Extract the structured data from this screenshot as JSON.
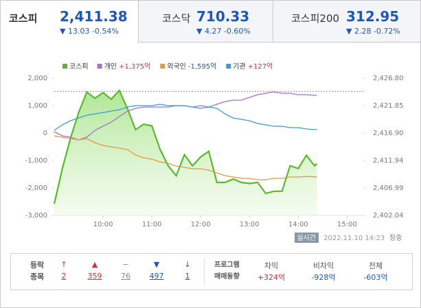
{
  "tabs": [
    {
      "name": "코스피",
      "value": "2,411.38",
      "change": "▼ 13.03 -0.54%"
    },
    {
      "name": "코스닥",
      "value": "710.33",
      "change": "▼ 4.27 -0.60%"
    },
    {
      "name": "코스피200",
      "value": "312.95",
      "change": "▼ 2.28 -0.72%"
    }
  ],
  "chart_data": {
    "type": "line",
    "x": [
      540,
      550,
      560,
      570,
      580,
      590,
      600,
      610,
      620,
      630,
      640,
      650,
      660,
      670,
      680,
      690,
      700,
      710,
      720,
      730,
      740,
      750,
      760,
      770,
      780,
      790,
      800,
      810,
      820,
      830,
      840,
      850,
      860,
      863
    ],
    "xlim": [
      540,
      920
    ],
    "xticks": [
      {
        "value": 600,
        "label": "10:00"
      },
      {
        "value": 660,
        "label": "11:00"
      },
      {
        "value": 720,
        "label": "12:00"
      },
      {
        "value": 780,
        "label": "13:00"
      },
      {
        "value": 840,
        "label": "14:00"
      },
      {
        "value": 900,
        "label": "15:00"
      }
    ],
    "ylim": [
      -3000,
      2000
    ],
    "yticks": [
      {
        "value": 2000,
        "label": "2,000"
      },
      {
        "value": 1000,
        "label": "1,000"
      },
      0,
      {
        "value": -1000,
        "label": "-1,000"
      },
      {
        "value": -2000,
        "label": "-2,000"
      },
      {
        "value": -3000,
        "label": "-3,000"
      }
    ],
    "y2lim": [
      2402.04,
      2426.8
    ],
    "y2ticks": [
      {
        "value": 2426.8,
        "label": "2,426.80"
      },
      {
        "value": 2421.85,
        "label": "2,421.85"
      },
      {
        "value": 2416.9,
        "label": "2,416.90"
      },
      {
        "value": 2411.94,
        "label": "2,411.94"
      },
      {
        "value": 2406.99,
        "label": "2,406.99"
      },
      {
        "value": 2402.04,
        "label": "2,402.04"
      }
    ],
    "reference_line": 2424.41,
    "grid": false,
    "series": [
      {
        "name": "코스피",
        "color": "#58b92b",
        "axis": "y2",
        "fill": true,
        "values": [
          2404.15,
          2410.5,
          2416.0,
          2420.6,
          2424.3,
          2423.2,
          2424.2,
          2423.0,
          2424.6,
          2421.3,
          2417.5,
          2418.5,
          2418.2,
          2414.0,
          2411.0,
          2409.2,
          2413.0,
          2411.0,
          2412.6,
          2413.6,
          2408.0,
          2408.0,
          2408.6,
          2408.0,
          2407.8,
          2408.0,
          2406.0,
          2406.4,
          2406.4,
          2411.0,
          2410.5,
          2412.9,
          2411.0,
          2411.38
        ]
      },
      {
        "name": "개인",
        "color": "#a56fd2",
        "total_label": "+1,375억",
        "label_color": "#d3302f",
        "values": [
          50,
          -100,
          -150,
          -250,
          -150,
          100,
          250,
          400,
          600,
          800,
          900,
          950,
          950,
          950,
          950,
          1000,
          1000,
          950,
          1000,
          950,
          1050,
          1150,
          1200,
          1200,
          1300,
          1400,
          1450,
          1500,
          1450,
          1450,
          1400,
          1400,
          1375,
          1375
        ]
      },
      {
        "name": "외국인",
        "color": "#e8973a",
        "total_label": "-1,595억",
        "label_color": "#1f57b3",
        "values": [
          -100,
          -150,
          -200,
          -250,
          -200,
          -350,
          -450,
          -500,
          -550,
          -600,
          -800,
          -900,
          -950,
          -1050,
          -1100,
          -1200,
          -1250,
          -1300,
          -1300,
          -1350,
          -1450,
          -1550,
          -1600,
          -1650,
          -1650,
          -1700,
          -1700,
          -1650,
          -1650,
          -1600,
          -1600,
          -1580,
          -1595,
          -1595
        ]
      },
      {
        "name": "기관",
        "color": "#3a9ad9",
        "total_label": "+127억",
        "label_color": "#d3302f",
        "values": [
          100,
          300,
          450,
          550,
          650,
          700,
          750,
          800,
          850,
          950,
          1000,
          1000,
          1000,
          1050,
          1000,
          1000,
          1000,
          950,
          900,
          950,
          900,
          700,
          550,
          500,
          450,
          350,
          300,
          250,
          250,
          200,
          200,
          150,
          127,
          127
        ]
      }
    ]
  },
  "status": {
    "badge": "실시간",
    "timestamp": "2022.11.10 14:23",
    "session": "장중"
  },
  "breadth": {
    "label_lines": [
      "등락",
      "종목"
    ],
    "items": [
      {
        "symbol": "↑",
        "count": 2
      },
      {
        "symbol": "▲",
        "count": 359
      },
      {
        "symbol": "−",
        "count": 76
      },
      {
        "symbol": "▼",
        "count": 497
      },
      {
        "symbol": "↓",
        "count": 1
      }
    ]
  },
  "program": {
    "label_lines": [
      "프로그램",
      "매매동향"
    ],
    "columns": [
      {
        "name": "차익",
        "value": "+324억"
      },
      {
        "name": "비차익",
        "value": "-928억"
      },
      {
        "name": "전체",
        "value": "-603억"
      }
    ]
  }
}
